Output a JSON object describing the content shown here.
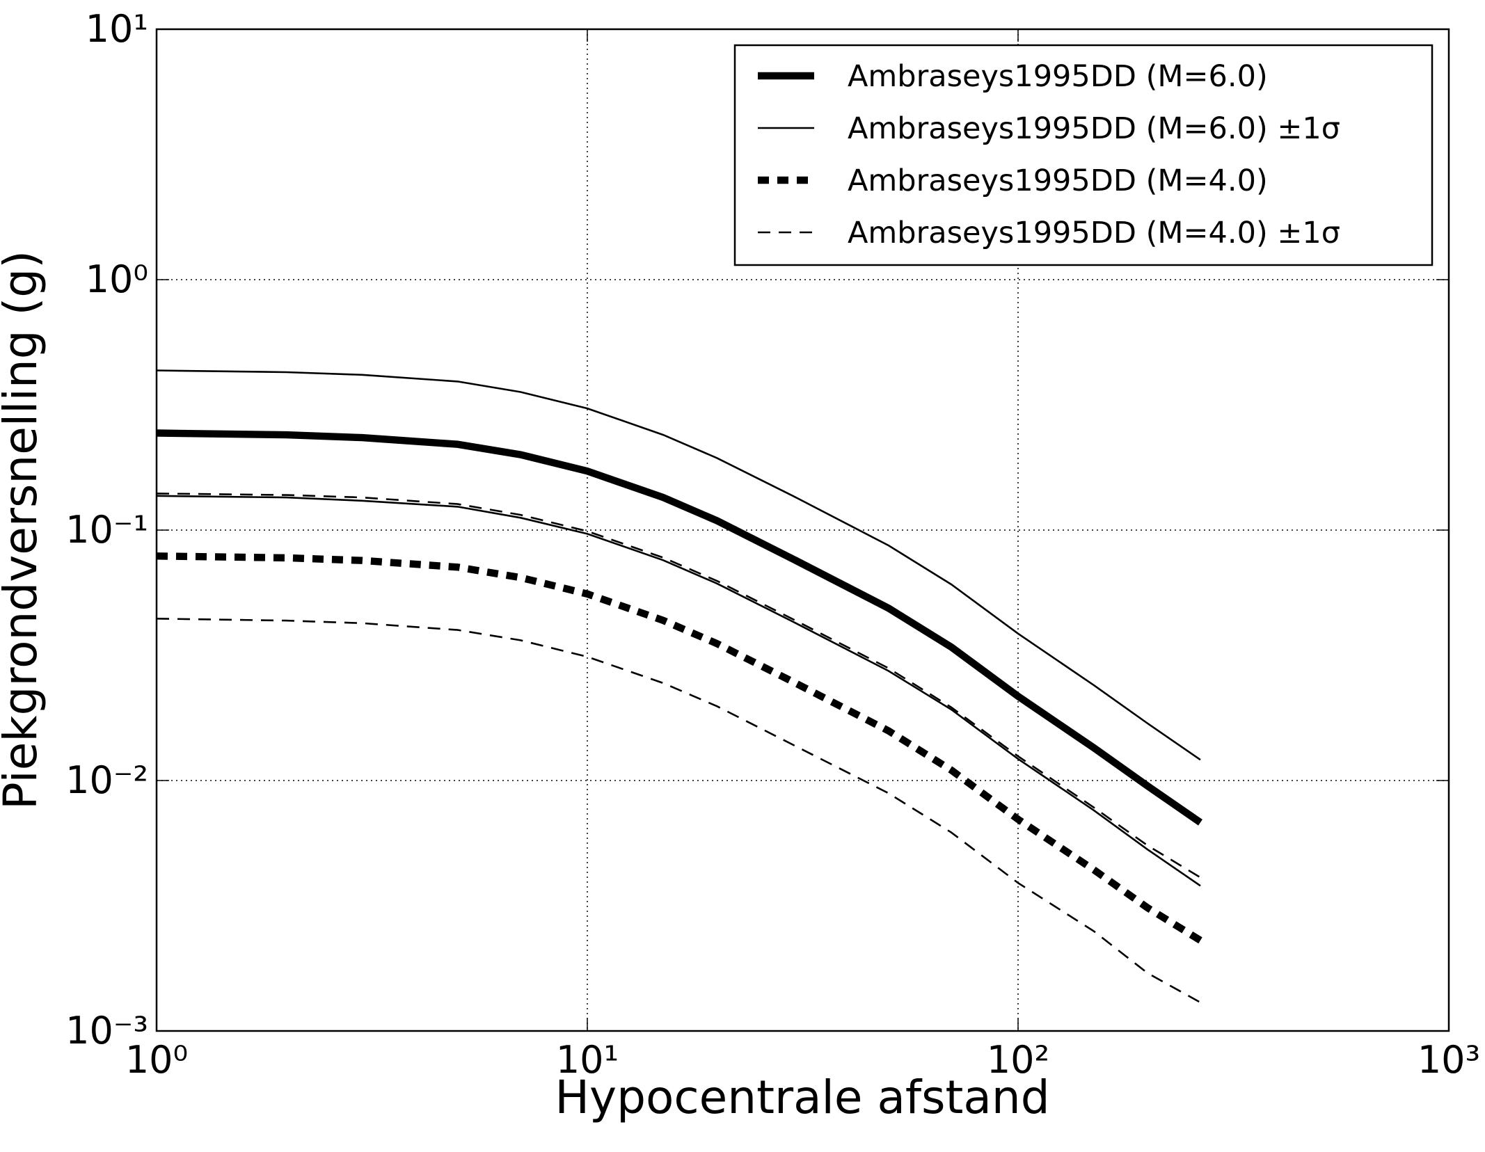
{
  "chart_data": {
    "type": "line",
    "xlabel": "Hypocentrale afstand",
    "ylabel": "Piekgrondversnelling (g)",
    "xscale": "log",
    "yscale": "log",
    "grid": true,
    "legend": "upper right",
    "xlim": [
      1,
      1000
    ],
    "ylim": [
      0.001,
      10
    ],
    "xticks": [
      {
        "value": 1,
        "label": "10⁰"
      },
      {
        "value": 10,
        "label": "10¹"
      },
      {
        "value": 100,
        "label": "10²"
      },
      {
        "value": 1000,
        "label": "10³"
      }
    ],
    "yticks": [
      {
        "value": 0.001,
        "label": "10⁻³"
      },
      {
        "value": 0.01,
        "label": "10⁻²"
      },
      {
        "value": 0.1,
        "label": "10⁻¹"
      },
      {
        "value": 1,
        "label": "10⁰"
      },
      {
        "value": 10,
        "label": "10¹"
      }
    ],
    "x": [
      1,
      2,
      3,
      5,
      7,
      10,
      15,
      20,
      30,
      50,
      70,
      100,
      150,
      200,
      265
    ],
    "series": [
      {
        "name": "Ambraseys1995DD (M=6.0)",
        "color": "#000000",
        "linewidth": 4,
        "linestyle": "solid",
        "values": [
          0.244,
          0.24,
          0.234,
          0.22,
          0.2,
          0.172,
          0.135,
          0.109,
          0.0767,
          0.0488,
          0.0341,
          0.0217,
          0.0135,
          0.0095,
          0.0068
        ]
      },
      {
        "name": "Ambraseys1995DD (M=6.0) ±1σ",
        "color": "#000000",
        "linewidth": 1,
        "linestyle": "solid",
        "values_upper": [
          0.434,
          0.427,
          0.417,
          0.392,
          0.356,
          0.306,
          0.24,
          0.194,
          0.137,
          0.0869,
          0.0607,
          0.0386,
          0.024,
          0.0169,
          0.0121
        ],
        "values_lower": [
          0.137,
          0.135,
          0.131,
          0.124,
          0.112,
          0.0966,
          0.0758,
          0.0612,
          0.0431,
          0.0274,
          0.0192,
          0.0122,
          0.0076,
          0.0053,
          0.0038
        ]
      },
      {
        "name": "Ambraseys1995DD (M=4.0)",
        "color": "#000000",
        "linewidth": 4,
        "linestyle": "dashed",
        "values": [
          0.0788,
          0.0775,
          0.0756,
          0.0711,
          0.0646,
          0.0556,
          0.0436,
          0.0352,
          0.0248,
          0.0158,
          0.011,
          0.007,
          0.0044,
          0.0031,
          0.0023
        ]
      },
      {
        "name": "Ambraseys1995DD (M=4.0) ±1σ",
        "color": "#000000",
        "linewidth": 1,
        "linestyle": "dashed",
        "values_upper": [
          0.14,
          0.138,
          0.135,
          0.127,
          0.115,
          0.099,
          0.0776,
          0.0627,
          0.0441,
          0.0281,
          0.0196,
          0.0125,
          0.0078,
          0.0055,
          0.0041
        ],
        "values_lower": [
          0.0443,
          0.0435,
          0.0425,
          0.0399,
          0.0363,
          0.0312,
          0.0245,
          0.0198,
          0.0139,
          0.0089,
          0.0062,
          0.0039,
          0.0025,
          0.0017,
          0.0013
        ]
      }
    ]
  }
}
